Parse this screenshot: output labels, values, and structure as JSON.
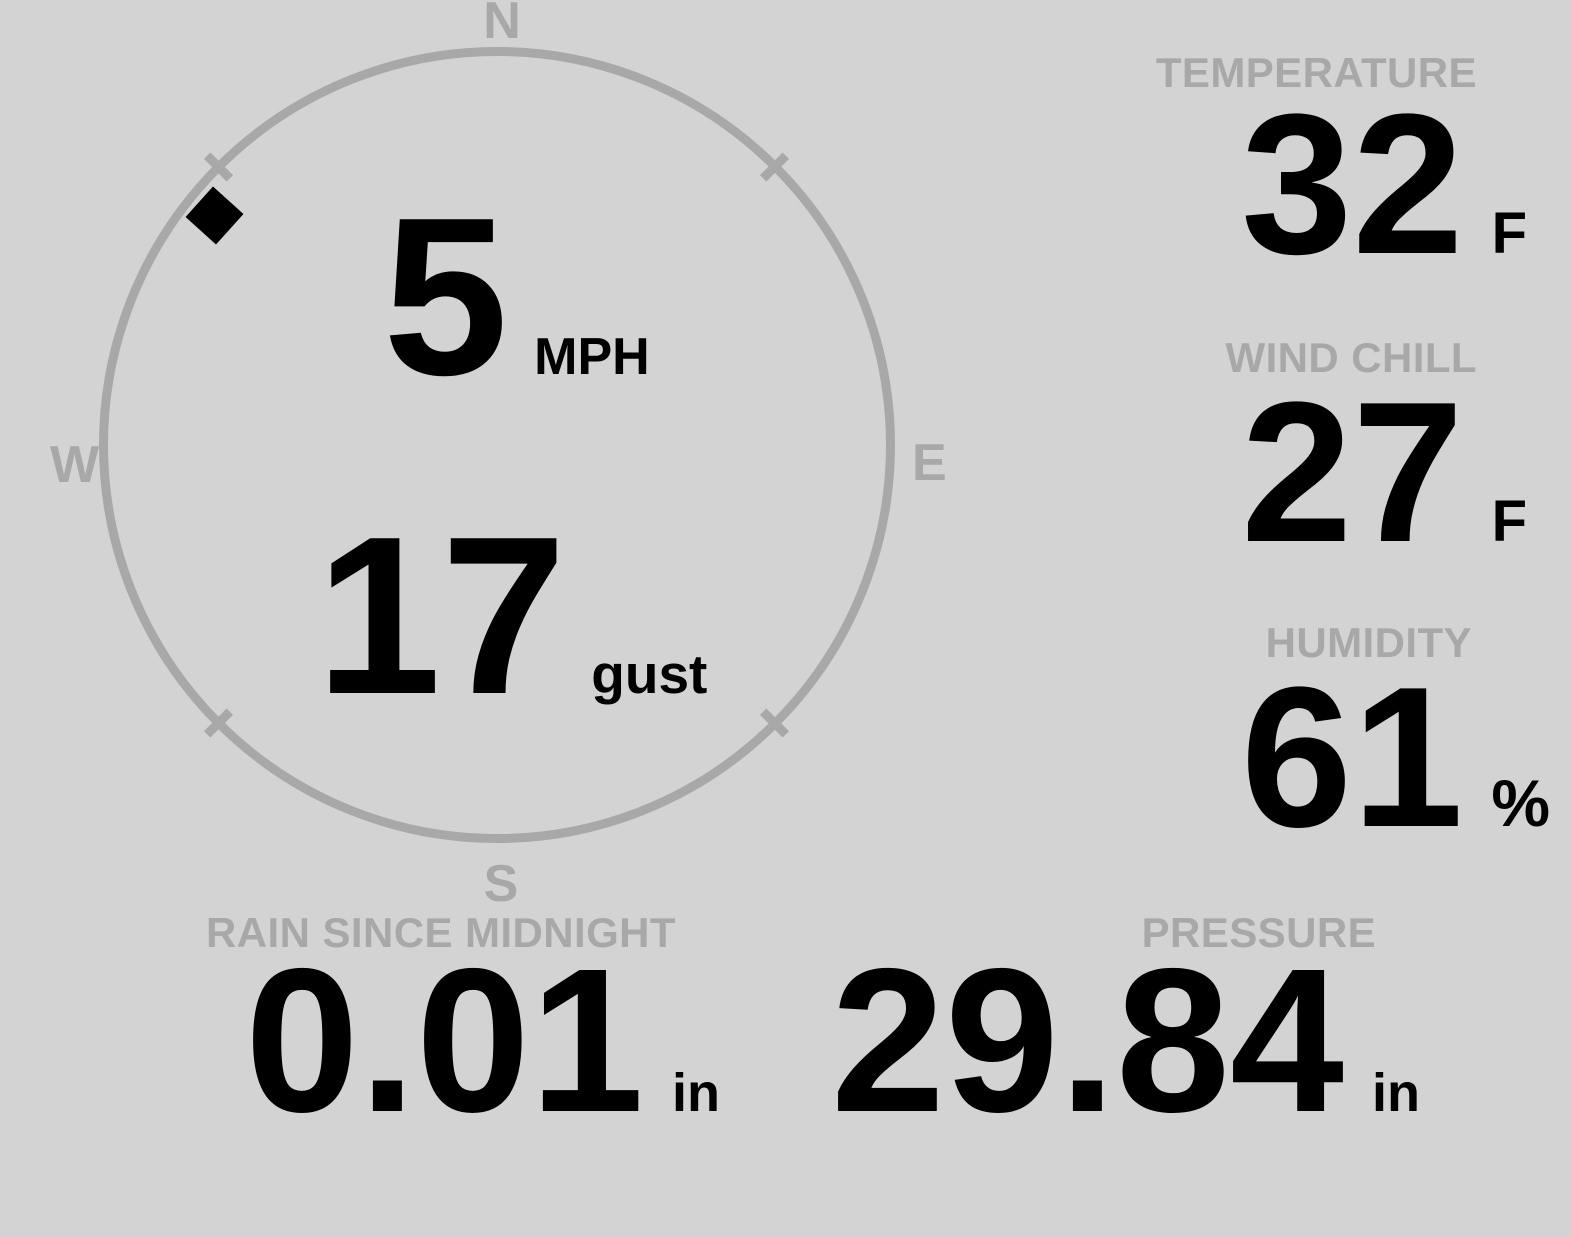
{
  "colors": {
    "background": "#d3d3d3",
    "muted_gray": "#a8a8a8",
    "value_black": "#000000"
  },
  "compass": {
    "labels": {
      "north": "N",
      "east": "E",
      "south": "S",
      "west": "W"
    },
    "wind_direction_deg": 310,
    "wind_speed": {
      "value": "5",
      "unit": "MPH"
    },
    "wind_gust": {
      "value": "17",
      "unit": "gust"
    }
  },
  "metrics": {
    "temperature": {
      "label": "TEMPERATURE",
      "value": "32",
      "unit": "F"
    },
    "wind_chill": {
      "label": "WIND CHILL",
      "value": "27",
      "unit": "F"
    },
    "humidity": {
      "label": "HUMIDITY",
      "value": "61",
      "unit": "%"
    },
    "rain": {
      "label": "RAIN SINCE MIDNIGHT",
      "value": "0.01",
      "unit": "in"
    },
    "pressure": {
      "label": "PRESSURE",
      "value": "29.84",
      "unit": "in"
    }
  }
}
